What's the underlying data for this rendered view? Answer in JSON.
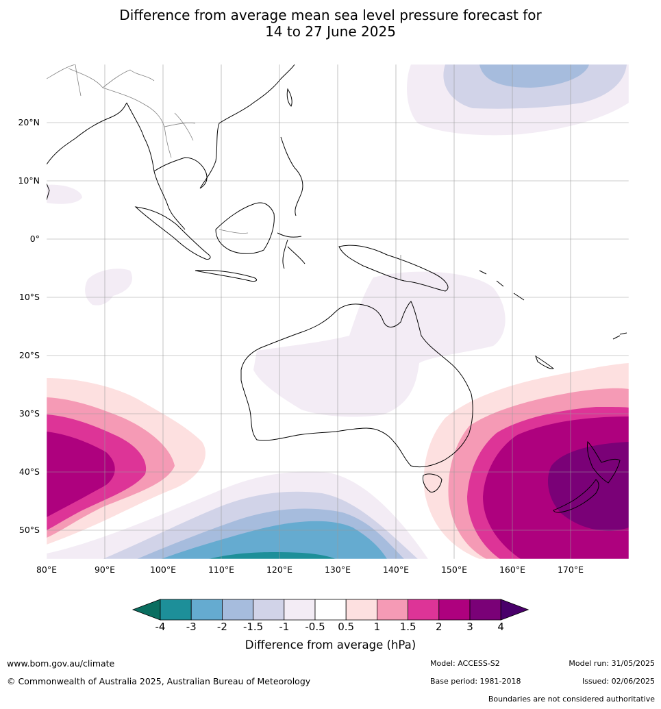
{
  "title": {
    "line1": "Difference from average mean sea level pressure forecast for",
    "line2": "14 to 27 June 2025"
  },
  "map": {
    "lon_range": [
      80,
      180
    ],
    "lat_range": [
      -55,
      30
    ],
    "lat_labels": [
      "20°N",
      "10°N",
      "0°",
      "10°S",
      "20°S",
      "30°S",
      "40°S",
      "50°S"
    ],
    "lon_labels": [
      "80°E",
      "90°E",
      "100°E",
      "110°E",
      "120°E",
      "130°E",
      "140°E",
      "150°E",
      "160°E",
      "170°E"
    ]
  },
  "colorbar": {
    "labels": [
      "-4",
      "-3",
      "-2",
      "-1.5",
      "-1",
      "-0.5",
      "0.5",
      "1",
      "1.5",
      "2",
      "3",
      "4"
    ],
    "colors": [
      "#0a6e60",
      "#1d8f99",
      "#65abd0",
      "#a6bcdd",
      "#d1d3e8",
      "#f3ecf5",
      "#ffffff",
      "#fde0e0",
      "#f59ab5",
      "#dd3497",
      "#ae017e",
      "#7a0177",
      "#49006a"
    ],
    "title": "Difference from average (hPa)"
  },
  "footer": {
    "website": "www.bom.gov.au/climate",
    "copyright": "© Commonwealth of Australia 2025, Australian Bureau of Meteorology",
    "model": "Model: ACCESS-S2",
    "base_period": "Base period: 1981-2018",
    "model_run": "Model run: 31/05/2025",
    "issued": "Issued: 02/06/2025",
    "disclaimer": "Boundaries are not considered authoritative"
  }
}
